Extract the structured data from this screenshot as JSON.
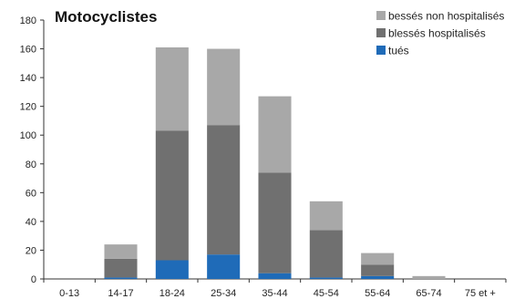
{
  "chart_data": {
    "type": "bar",
    "stacked": true,
    "title": "Motocyclistes",
    "xlabel": "",
    "ylabel": "",
    "ylim": [
      0,
      180
    ],
    "yticks": [
      0,
      20,
      40,
      60,
      80,
      100,
      120,
      140,
      160,
      180
    ],
    "grid": false,
    "legend_position": "top-right",
    "categories": [
      "0-13",
      "14-17",
      "18-24",
      "25-34",
      "35-44",
      "45-54",
      "55-64",
      "65-74",
      "75 et +"
    ],
    "series": [
      {
        "name": "tués",
        "color": "#1f6bb8",
        "values": [
          0,
          1,
          13,
          17,
          4,
          1,
          2,
          0,
          0
        ]
      },
      {
        "name": "blessés hospitalisés",
        "color": "#707070",
        "values": [
          0,
          13,
          90,
          90,
          70,
          33,
          8,
          0,
          0
        ]
      },
      {
        "name": "bessés non hospitalisés",
        "color": "#a8a8a8",
        "values": [
          0,
          10,
          58,
          53,
          53,
          20,
          8,
          2,
          0
        ]
      }
    ],
    "legend_order": [
      2,
      1,
      0
    ]
  }
}
